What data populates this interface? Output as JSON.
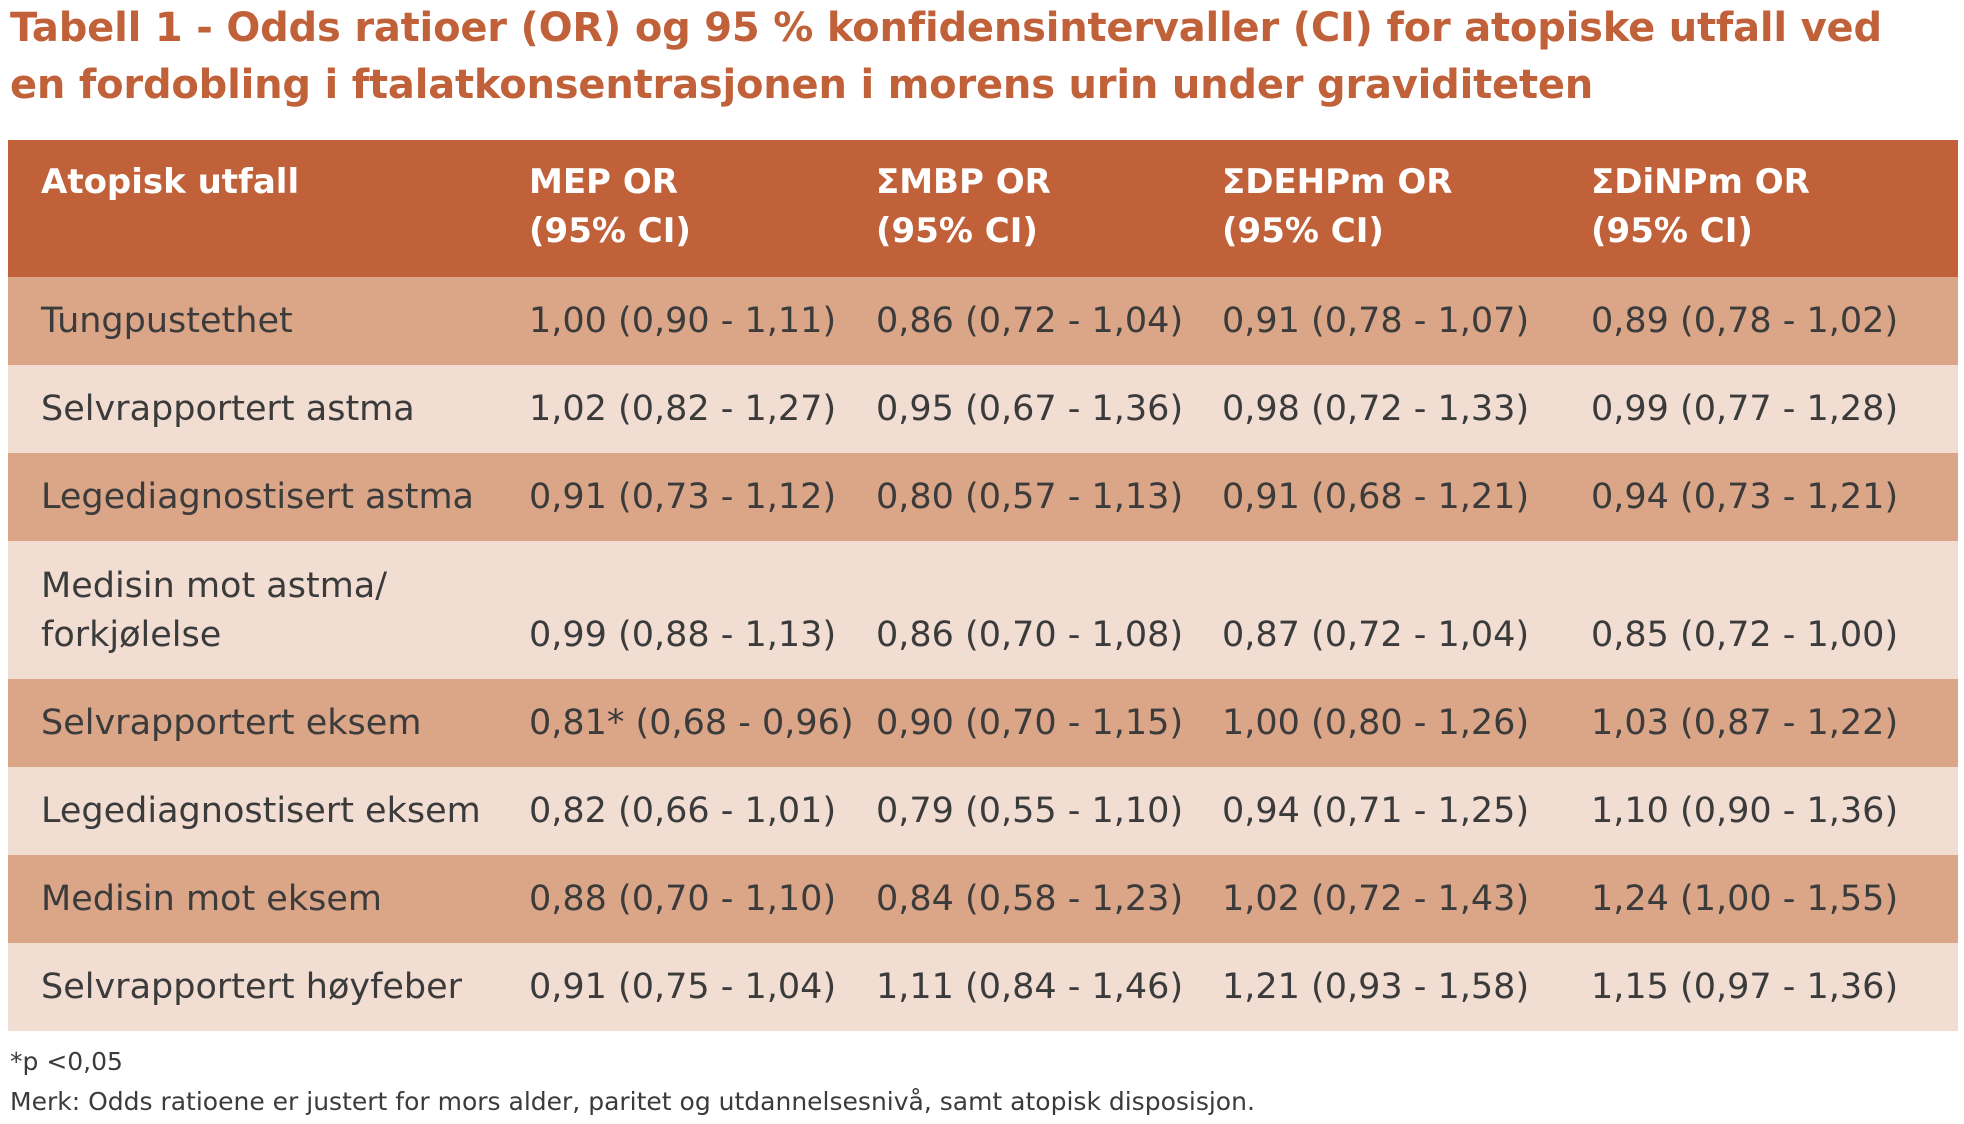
{
  "title": "Tabell 1 - Odds ratioer (OR) og 95 % konfidensintervaller (CI) for atopiske utfall ved en fordobling i ftalatkonsentrasjonen i morens urin under graviditeten",
  "table": {
    "headers": [
      {
        "line1": "Atopisk utfall",
        "line2": ""
      },
      {
        "line1": "MEP OR",
        "line2": "(95% CI)"
      },
      {
        "line1": "ΣMBP OR",
        "line2": "(95% CI)"
      },
      {
        "line1": "ΣDEHPm OR",
        "line2": "(95% CI)"
      },
      {
        "line1": "ΣDiNPm OR",
        "line2": "(95% CI)"
      }
    ],
    "rows": [
      {
        "outcome": "Tungpustethet",
        "mep": "1,00 (0,90 - 1,11)",
        "mbp": "0,86 (0,72 - 1,04)",
        "dehp": "0,91 (0,78 - 1,07)",
        "dinp": "0,89 (0,78 - 1,02)"
      },
      {
        "outcome": "Selvrapportert astma",
        "mep": "1,02 (0,82 - 1,27)",
        "mbp": "0,95 (0,67 - 1,36)",
        "dehp": "0,98 (0,72 - 1,33)",
        "dinp": "0,99 (0,77 - 1,28)"
      },
      {
        "outcome": "Legediagnostisert astma",
        "mep": "0,91 (0,73 - 1,12)",
        "mbp": "0,80 (0,57 - 1,13)",
        "dehp": "0,91 (0,68 - 1,21)",
        "dinp": "0,94 (0,73 - 1,21)"
      },
      {
        "outcome": "Medisin mot astma/ forkjølelse",
        "mep": "0,99 (0,88 - 1,13)",
        "mbp": "0,86 (0,70 - 1,08)",
        "dehp": "0,87 (0,72 - 1,04)",
        "dinp": "0,85 (0,72 - 1,00)"
      },
      {
        "outcome": "Selvrapportert eksem",
        "mep": "0,81* (0,68 - 0,96)",
        "mbp": "0,90 (0,70 - 1,15)",
        "dehp": "1,00 (0,80 - 1,26)",
        "dinp": "1,03 (0,87 - 1,22)"
      },
      {
        "outcome": "Legediagnostisert eksem",
        "mep": "0,82 (0,66 - 1,01)",
        "mbp": "0,79 (0,55 - 1,10)",
        "dehp": "0,94 (0,71 - 1,25)",
        "dinp": "1,10 (0,90 - 1,36)"
      },
      {
        "outcome": "Medisin mot eksem",
        "mep": "0,88 (0,70 - 1,10)",
        "mbp": "0,84 (0,58 - 1,23)",
        "dehp": "1,02 (0,72 - 1,43)",
        "dinp": "1,24 (1,00 - 1,55)"
      },
      {
        "outcome": "Selvrapportert høyfeber",
        "mep": "0,91 (0,75 - 1,04)",
        "mbp": "1,11 (0,84 - 1,46)",
        "dehp": " 1,21 (0,93 - 1,58)",
        "dinp": "1,15 (0,97 - 1,36)"
      }
    ]
  },
  "notes": {
    "significance": "*p <0,05",
    "remark": "Merk: Odds ratioene er justert for mors alder, paritet og utdannelsesnivå, samt atopisk disposisjon."
  },
  "colors": {
    "accent": "#c0613a",
    "row_dark": "#dba588",
    "row_light": "#f1ddd2",
    "text": "#3b3b3b"
  }
}
